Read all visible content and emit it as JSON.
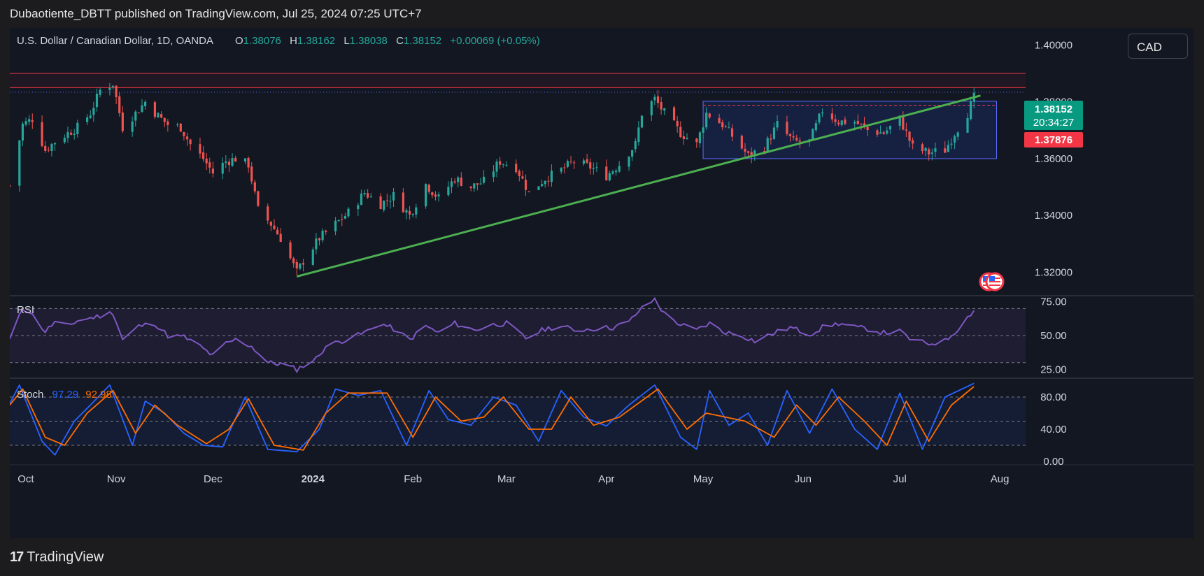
{
  "header": {
    "published_text": "Dubaotiente_DBTT published on TradingView.com, Jul 25, 2024 07:25 UTC+7"
  },
  "footer": {
    "brand": "TradingView",
    "mark": "17"
  },
  "currency_button": {
    "label": "CAD"
  },
  "symbol": {
    "name": "U.S. Dollar / Canadian Dollar, 1D, OANDA",
    "open_label": "O",
    "open": "1.38076",
    "high_label": "H",
    "high": "1.38162",
    "low_label": "L",
    "low": "1.38038",
    "close_label": "C",
    "close": "1.38152",
    "change": "+0.00069 (+0.05%)"
  },
  "price_labels": {
    "last": "1.38152",
    "countdown": "20:34:27",
    "level": "1.37876"
  },
  "panes": {
    "rsi": {
      "label": "RSI"
    },
    "stoch": {
      "label": "Stoch",
      "k_value": "97.29",
      "d_value": "92.98"
    }
  },
  "colors": {
    "background": "#131722",
    "up": "#26a69a",
    "down": "#ef5350",
    "trendline": "#4caf50",
    "rsi": "#7e57c2",
    "stoch_k": "#2962ff",
    "stoch_d": "#ff6d00",
    "last_price_tag": "#089981",
    "level_tag": "#f23645"
  },
  "icons": {
    "event_flags": "us-flag-icon"
  },
  "chart_data": [
    {
      "type": "candlestick",
      "title": "U.S. Dollar / Canadian Dollar, 1D, OANDA",
      "y_ticks": [
        "1.40000",
        "1.38000",
        "1.36000",
        "1.34000",
        "1.32000"
      ],
      "y_tick_values": [
        1.4,
        1.38,
        1.36,
        1.34,
        1.32
      ],
      "ylim": [
        1.312,
        1.406
      ],
      "x_tick_labels": [
        "Oct",
        "Nov",
        "Dec",
        "2024",
        "Feb",
        "Mar",
        "Apr",
        "May",
        "Jun",
        "Jul",
        "Aug"
      ],
      "x_tick_dates": [
        "2023-10-01",
        "2023-11-01",
        "2023-12-01",
        "2024-01-01",
        "2024-02-01",
        "2024-03-01",
        "2024-04-01",
        "2024-05-01",
        "2024-06-01",
        "2024-07-01",
        "2024-08-01"
      ],
      "xlim": [
        "2023-09-29",
        "2024-08-09"
      ],
      "path": [
        [
          "2023-09-29",
          1.3505
        ],
        [
          "2023-10-03",
          1.372
        ],
        [
          "2023-10-06",
          1.374
        ],
        [
          "2023-10-10",
          1.363
        ],
        [
          "2023-10-13",
          1.366
        ],
        [
          "2023-10-17",
          1.369
        ],
        [
          "2023-10-20",
          1.371
        ],
        [
          "2023-10-24",
          1.376
        ],
        [
          "2023-10-27",
          1.384
        ],
        [
          "2023-10-31",
          1.3865
        ],
        [
          "2023-11-03",
          1.371
        ],
        [
          "2023-11-07",
          1.376
        ],
        [
          "2023-11-10",
          1.38
        ],
        [
          "2023-11-14",
          1.375
        ],
        [
          "2023-11-17",
          1.372
        ],
        [
          "2023-11-21",
          1.371
        ],
        [
          "2023-11-24",
          1.365
        ],
        [
          "2023-11-28",
          1.36
        ],
        [
          "2023-12-01",
          1.355
        ],
        [
          "2023-12-05",
          1.359
        ],
        [
          "2023-12-08",
          1.36
        ],
        [
          "2023-12-12",
          1.358
        ],
        [
          "2023-12-15",
          1.342
        ],
        [
          "2023-12-19",
          1.337
        ],
        [
          "2023-12-22",
          1.332
        ],
        [
          "2023-12-27",
          1.32
        ],
        [
          "2023-12-29",
          1.324
        ],
        [
          "2024-01-03",
          1.332
        ],
        [
          "2024-01-08",
          1.337
        ],
        [
          "2024-01-12",
          1.341
        ],
        [
          "2024-01-17",
          1.348
        ],
        [
          "2024-01-22",
          1.344
        ],
        [
          "2024-01-26",
          1.347
        ],
        [
          "2024-01-31",
          1.34
        ],
        [
          "2024-02-05",
          1.351
        ],
        [
          "2024-02-09",
          1.346
        ],
        [
          "2024-02-14",
          1.353
        ],
        [
          "2024-02-19",
          1.35
        ],
        [
          "2024-02-23",
          1.352
        ],
        [
          "2024-02-28",
          1.359
        ],
        [
          "2024-03-04",
          1.357
        ],
        [
          "2024-03-08",
          1.348
        ],
        [
          "2024-03-13",
          1.353
        ],
        [
          "2024-03-18",
          1.356
        ],
        [
          "2024-03-22",
          1.359
        ],
        [
          "2024-03-27",
          1.357
        ],
        [
          "2024-04-01",
          1.354
        ],
        [
          "2024-04-05",
          1.358
        ],
        [
          "2024-04-10",
          1.365
        ],
        [
          "2024-04-12",
          1.376
        ],
        [
          "2024-04-16",
          1.381
        ],
        [
          "2024-04-19",
          1.376
        ],
        [
          "2024-04-24",
          1.369
        ],
        [
          "2024-04-29",
          1.365
        ],
        [
          "2024-05-02",
          1.376
        ],
        [
          "2024-05-07",
          1.372
        ],
        [
          "2024-05-10",
          1.368
        ],
        [
          "2024-05-15",
          1.361
        ],
        [
          "2024-05-20",
          1.364
        ],
        [
          "2024-05-24",
          1.372
        ],
        [
          "2024-05-29",
          1.366
        ],
        [
          "2024-06-03",
          1.366
        ],
        [
          "2024-06-07",
          1.377
        ],
        [
          "2024-06-12",
          1.373
        ],
        [
          "2024-06-17",
          1.373
        ],
        [
          "2024-06-21",
          1.37
        ],
        [
          "2024-06-26",
          1.369
        ],
        [
          "2024-07-01",
          1.374
        ],
        [
          "2024-07-05",
          1.364
        ],
        [
          "2024-07-10",
          1.362
        ],
        [
          "2024-07-15",
          1.363
        ],
        [
          "2024-07-18",
          1.369
        ],
        [
          "2024-07-22",
          1.376
        ],
        [
          "2024-07-24",
          1.3815
        ]
      ],
      "annotations": {
        "resistance_band": [
          1.385,
          1.39
        ],
        "range_box": {
          "from": "2024-05-01",
          "to": "2024-07-31",
          "low": 1.36,
          "high": 1.3802,
          "mid_dash": 1.3788
        },
        "trendline": {
          "from": [
            "2023-12-27",
            1.3185
          ],
          "to": [
            "2024-07-26",
            1.3822
          ]
        },
        "dotted_line": 1.3834
      }
    },
    {
      "type": "line",
      "title": "RSI",
      "y_ticks": [
        "75.00",
        "50.00",
        "25.00"
      ],
      "y_tick_values": [
        75,
        50,
        25
      ],
      "ylim": [
        19,
        79
      ],
      "band": [
        30,
        70
      ],
      "path": [
        [
          "2023-09-29",
          47
        ],
        [
          "2023-10-03",
          70
        ],
        [
          "2023-10-05",
          68
        ],
        [
          "2023-10-10",
          53
        ],
        [
          "2023-10-13",
          60
        ],
        [
          "2023-10-17",
          57
        ],
        [
          "2023-10-20",
          61
        ],
        [
          "2023-10-26",
          64
        ],
        [
          "2023-10-31",
          67
        ],
        [
          "2023-11-03",
          47
        ],
        [
          "2023-11-08",
          57
        ],
        [
          "2023-11-13",
          59
        ],
        [
          "2023-11-17",
          50
        ],
        [
          "2023-11-22",
          49
        ],
        [
          "2023-11-27",
          42
        ],
        [
          "2023-12-01",
          35
        ],
        [
          "2023-12-05",
          44
        ],
        [
          "2023-12-08",
          47
        ],
        [
          "2023-12-13",
          42
        ],
        [
          "2023-12-18",
          30
        ],
        [
          "2023-12-22",
          29
        ],
        [
          "2023-12-27",
          25
        ],
        [
          "2024-01-02",
          33
        ],
        [
          "2024-01-05",
          42
        ],
        [
          "2024-01-11",
          47
        ],
        [
          "2024-01-16",
          51
        ],
        [
          "2024-01-22",
          59
        ],
        [
          "2024-01-26",
          55
        ],
        [
          "2024-01-31",
          47
        ],
        [
          "2024-02-05",
          57
        ],
        [
          "2024-02-09",
          52
        ],
        [
          "2024-02-14",
          59
        ],
        [
          "2024-02-20",
          54
        ],
        [
          "2024-02-26",
          58
        ],
        [
          "2024-03-01",
          59
        ],
        [
          "2024-03-07",
          48
        ],
        [
          "2024-03-13",
          55
        ],
        [
          "2024-03-18",
          57
        ],
        [
          "2024-03-22",
          54
        ],
        [
          "2024-03-27",
          55
        ],
        [
          "2024-04-03",
          56
        ],
        [
          "2024-04-08",
          60
        ],
        [
          "2024-04-11",
          68
        ],
        [
          "2024-04-16",
          77
        ],
        [
          "2024-04-19",
          66
        ],
        [
          "2024-04-24",
          58
        ],
        [
          "2024-04-29",
          54
        ],
        [
          "2024-05-03",
          59
        ],
        [
          "2024-05-07",
          53
        ],
        [
          "2024-05-13",
          50
        ],
        [
          "2024-05-17",
          46
        ],
        [
          "2024-05-22",
          51
        ],
        [
          "2024-05-28",
          56
        ],
        [
          "2024-06-03",
          51
        ],
        [
          "2024-06-07",
          56
        ],
        [
          "2024-06-12",
          59
        ],
        [
          "2024-06-17",
          56
        ],
        [
          "2024-06-21",
          55
        ],
        [
          "2024-06-26",
          52
        ],
        [
          "2024-07-01",
          53
        ],
        [
          "2024-07-05",
          46
        ],
        [
          "2024-07-10",
          44
        ],
        [
          "2024-07-15",
          46
        ],
        [
          "2024-07-19",
          55
        ],
        [
          "2024-07-24",
          69
        ]
      ]
    },
    {
      "type": "line",
      "title": "Stoch",
      "y_ticks": [
        "80.00",
        "40.00",
        "0.00"
      ],
      "y_tick_values": [
        80,
        40,
        0
      ],
      "ylim": [
        0,
        100
      ],
      "band": [
        20,
        80
      ],
      "series": [
        {
          "name": "97.29",
          "color": "#2962ff",
          "path": [
            [
              "2023-09-29",
              72
            ],
            [
              "2023-10-02",
              95
            ],
            [
              "2023-10-09",
              25
            ],
            [
              "2023-10-13",
              8
            ],
            [
              "2023-10-19",
              50
            ],
            [
              "2023-10-24",
              70
            ],
            [
              "2023-10-30",
              95
            ],
            [
              "2023-11-06",
              20
            ],
            [
              "2023-11-10",
              75
            ],
            [
              "2023-11-16",
              60
            ],
            [
              "2023-11-22",
              35
            ],
            [
              "2023-11-28",
              20
            ],
            [
              "2023-12-04",
              18
            ],
            [
              "2023-12-11",
              80
            ],
            [
              "2023-12-18",
              15
            ],
            [
              "2023-12-27",
              12
            ],
            [
              "2024-01-03",
              40
            ],
            [
              "2024-01-08",
              90
            ],
            [
              "2024-01-15",
              82
            ],
            [
              "2024-01-22",
              88
            ],
            [
              "2024-01-30",
              20
            ],
            [
              "2024-02-06",
              88
            ],
            [
              "2024-02-12",
              52
            ],
            [
              "2024-02-19",
              45
            ],
            [
              "2024-02-26",
              80
            ],
            [
              "2024-03-04",
              70
            ],
            [
              "2024-03-11",
              25
            ],
            [
              "2024-03-18",
              88
            ],
            [
              "2024-03-25",
              55
            ],
            [
              "2024-04-01",
              44
            ],
            [
              "2024-04-08",
              70
            ],
            [
              "2024-04-16",
              95
            ],
            [
              "2024-04-24",
              30
            ],
            [
              "2024-04-29",
              15
            ],
            [
              "2024-05-03",
              88
            ],
            [
              "2024-05-09",
              45
            ],
            [
              "2024-05-15",
              60
            ],
            [
              "2024-05-21",
              20
            ],
            [
              "2024-05-27",
              88
            ],
            [
              "2024-06-03",
              35
            ],
            [
              "2024-06-10",
              90
            ],
            [
              "2024-06-17",
              40
            ],
            [
              "2024-06-24",
              15
            ],
            [
              "2024-07-01",
              85
            ],
            [
              "2024-07-08",
              15
            ],
            [
              "2024-07-15",
              80
            ],
            [
              "2024-07-24",
              97
            ]
          ]
        },
        {
          "name": "92.98",
          "color": "#ff6d00",
          "path": [
            [
              "2023-09-29",
              70
            ],
            [
              "2023-10-03",
              90
            ],
            [
              "2023-10-10",
              30
            ],
            [
              "2023-10-16",
              20
            ],
            [
              "2023-10-23",
              60
            ],
            [
              "2023-10-31",
              88
            ],
            [
              "2023-11-07",
              35
            ],
            [
              "2023-11-13",
              70
            ],
            [
              "2023-11-20",
              45
            ],
            [
              "2023-11-29",
              22
            ],
            [
              "2023-12-06",
              40
            ],
            [
              "2023-12-12",
              78
            ],
            [
              "2023-12-20",
              20
            ],
            [
              "2023-12-29",
              14
            ],
            [
              "2024-01-05",
              60
            ],
            [
              "2024-01-12",
              85
            ],
            [
              "2024-01-24",
              85
            ],
            [
              "2024-02-01",
              30
            ],
            [
              "2024-02-08",
              80
            ],
            [
              "2024-02-16",
              50
            ],
            [
              "2024-02-23",
              55
            ],
            [
              "2024-02-29",
              80
            ],
            [
              "2024-03-08",
              40
            ],
            [
              "2024-03-15",
              40
            ],
            [
              "2024-03-21",
              80
            ],
            [
              "2024-03-28",
              45
            ],
            [
              "2024-04-05",
              55
            ],
            [
              "2024-04-17",
              90
            ],
            [
              "2024-04-26",
              40
            ],
            [
              "2024-05-02",
              60
            ],
            [
              "2024-05-08",
              55
            ],
            [
              "2024-05-14",
              50
            ],
            [
              "2024-05-23",
              30
            ],
            [
              "2024-05-30",
              70
            ],
            [
              "2024-06-05",
              45
            ],
            [
              "2024-06-12",
              80
            ],
            [
              "2024-06-20",
              50
            ],
            [
              "2024-06-27",
              20
            ],
            [
              "2024-07-03",
              75
            ],
            [
              "2024-07-10",
              25
            ],
            [
              "2024-07-17",
              70
            ],
            [
              "2024-07-24",
              93
            ]
          ]
        }
      ]
    }
  ]
}
